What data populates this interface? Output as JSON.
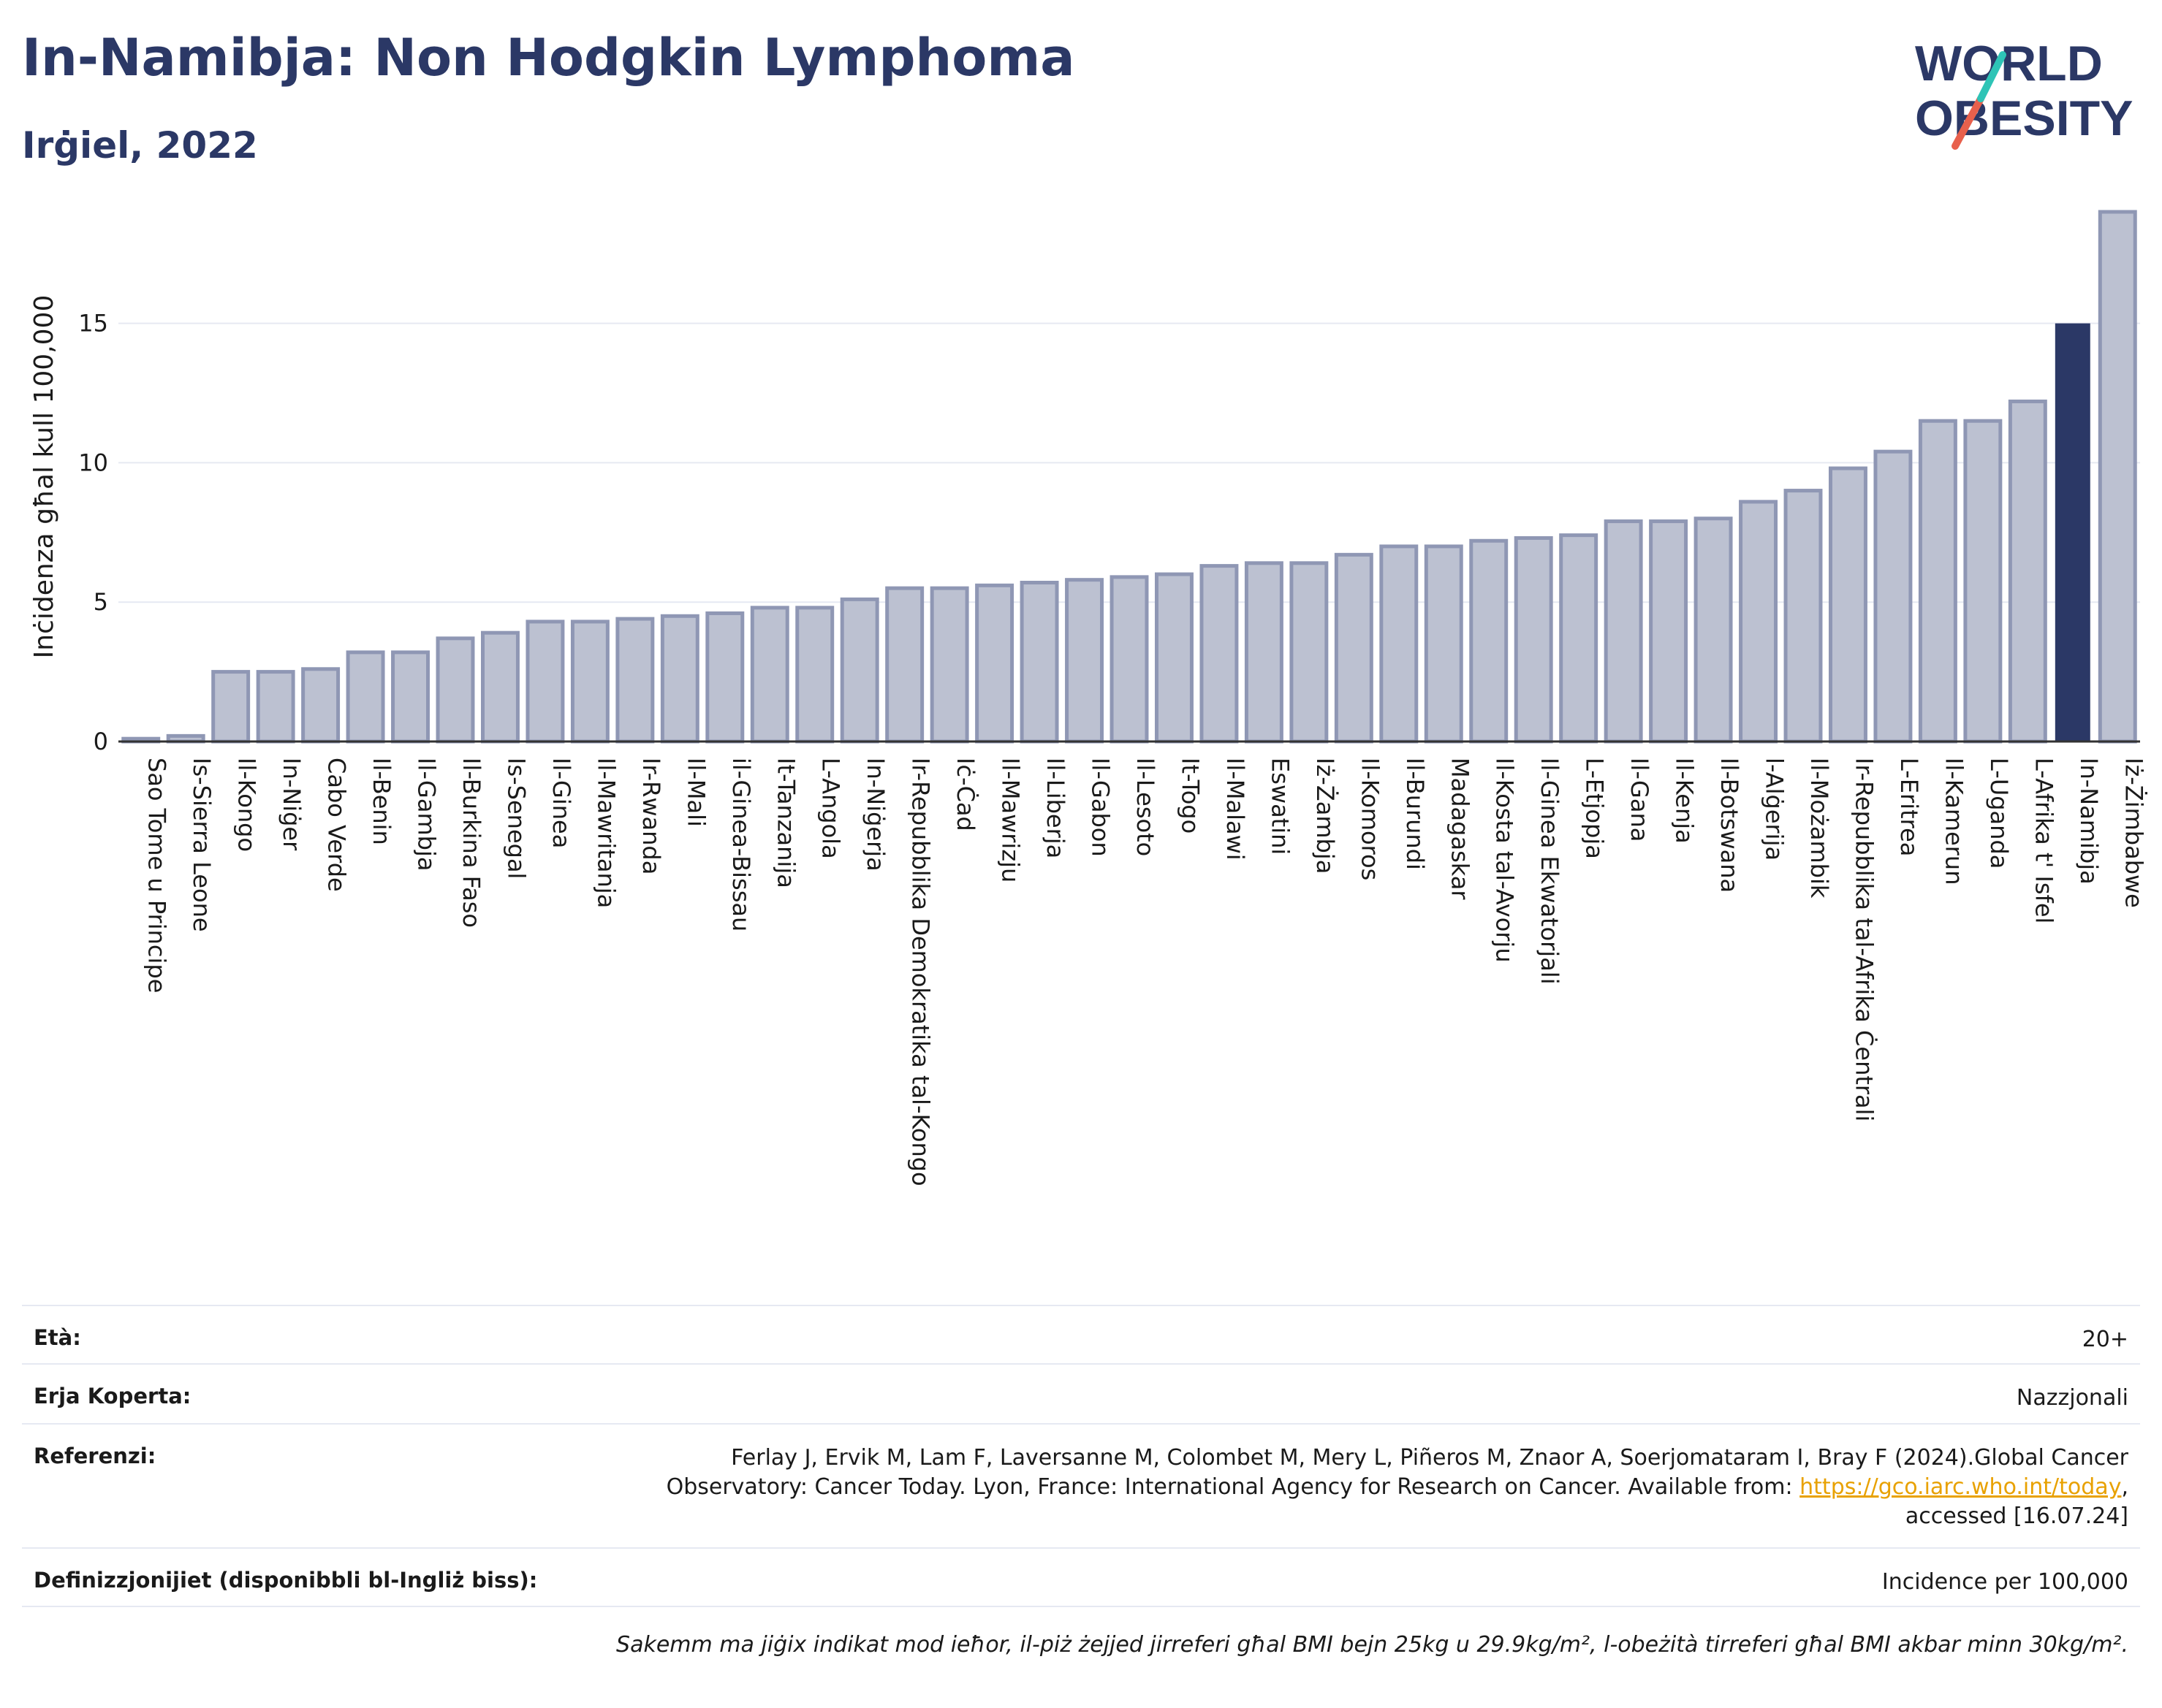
{
  "header": {
    "title": "In-Namibja: Non Hodgkin Lymphoma",
    "subtitle": "Irġiel, 2022"
  },
  "logo": {
    "line1": "WORLD",
    "line2": "OBESITY",
    "accent_colors": [
      "#2ec4b6",
      "#e8604c"
    ]
  },
  "colors": {
    "bar": "#bcc1d1",
    "bar_stroke": "#8f97b4",
    "highlight": "#2b3866",
    "title": "#2b3866",
    "grid": "#e6e9f2"
  },
  "chart_data": {
    "type": "bar",
    "ylabel": "Inċidenza għal kull 100,000",
    "ylim": [
      0,
      19
    ],
    "yticks": [
      0,
      5,
      10,
      15
    ],
    "highlight": "In-Namibja",
    "categories": [
      "Sao Tome u Principe",
      "Is-Sierra Leone",
      "Il-Kongo",
      "In-Niġer",
      "Cabo Verde",
      "Il-Benin",
      "Il-Gambja",
      "Il-Burkina Faso",
      "Is-Senegal",
      "Il-Ginea",
      "Il-Mawritanja",
      "Ir-Rwanda",
      "Il-Mali",
      "il-Ginea-Bissau",
      "It-Tanzanija",
      "L-Angola",
      "In-Niġerja",
      "Ir-Repubblika Demokratika tal-Kongo",
      "Iċ-Ċad",
      "Il-Mawrizju",
      "Il-Liberja",
      "Il-Gabon",
      "Il-Lesoto",
      "It-Togo",
      "Il-Malawi",
      "Eswatini",
      "Iż-Żambja",
      "Il-Komoros",
      "Il-Burundi",
      "Madagaskar",
      "Il-Kosta tal-Avorju",
      "Il-Ginea Ekwatorjali",
      "L-Etjopja",
      "Il-Gana",
      "Il-Kenja",
      "Il-Botswana",
      "l-Alġerija",
      "Il-Możambik",
      "Ir-Repubblika tal-Afrika Ċentrali",
      "L-Eritrea",
      "Il-Kamerun",
      "L-Uganda",
      "L-Afrika t' Isfel",
      "In-Namibja",
      "Iż-Żimbabwe"
    ],
    "values": [
      0.1,
      0.2,
      2.5,
      2.5,
      2.6,
      3.2,
      3.2,
      3.7,
      3.9,
      4.3,
      4.3,
      4.4,
      4.5,
      4.6,
      4.8,
      4.8,
      5.1,
      5.5,
      5.5,
      5.6,
      5.7,
      5.8,
      5.9,
      6.0,
      6.3,
      6.4,
      6.4,
      6.7,
      7.0,
      7.0,
      7.2,
      7.3,
      7.4,
      7.9,
      7.9,
      8.0,
      8.6,
      9.0,
      9.8,
      10.4,
      11.5,
      11.5,
      12.2,
      15.0,
      19.0
    ]
  },
  "info": {
    "age_label": "Età:",
    "age_value": "20+",
    "area_label": "Erja Koperta:",
    "area_value": "Nazzjonali",
    "ref_label": "Referenzi:",
    "ref_line1": "Ferlay J, Ervik M, Lam F, Laversanne M, Colombet M, Mery L, Piñeros M, Znaor A, Soerjomataram I, Bray F (2024).Global Cancer",
    "ref_line2_pre": "Observatory: Cancer Today. Lyon, France: International Agency for Research on Cancer. Available from: ",
    "ref_link": "https://gco.iarc.who.int/today",
    "ref_line2_post": ",",
    "ref_line3": "accessed [16.07.24]",
    "def_label": "Definizzjonijiet (disponibbli bl-Ingliż biss):",
    "def_value": "Incidence per 100,000",
    "note": "Sakemm ma jiġix indikat mod ieħor, il-piż żejjed jirreferi għal BMI bejn 25kg u 29.9kg/m², l-obeżità tirreferi għal BMI akbar minn 30kg/m²."
  }
}
